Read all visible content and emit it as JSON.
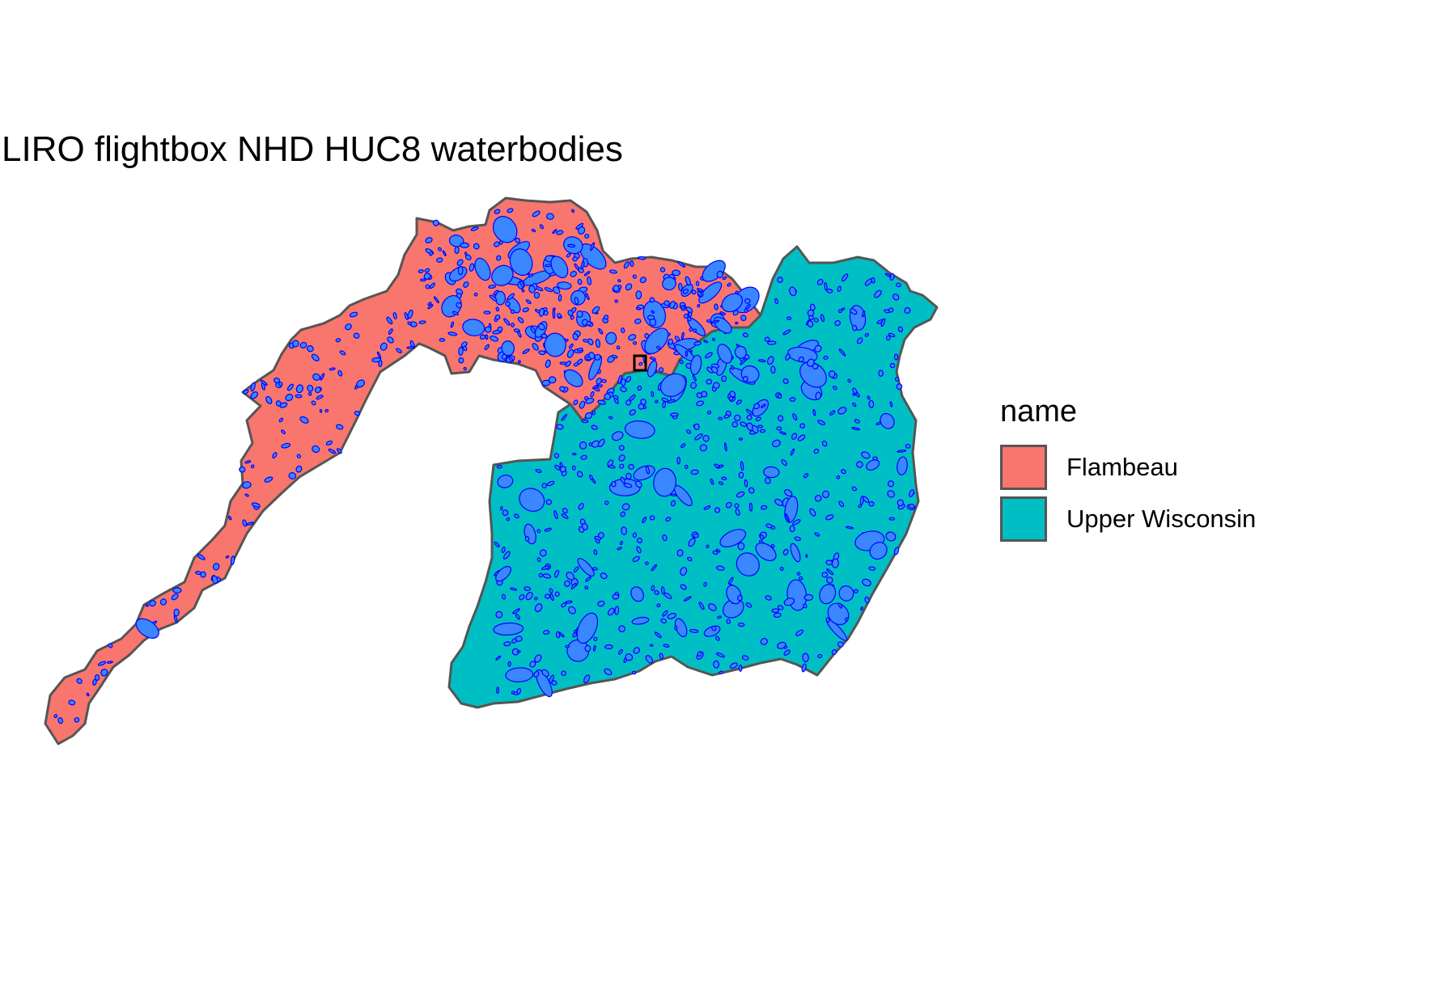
{
  "title": "LIRO flightbox NHD HUC8 waterbodies",
  "legend": {
    "title": "name",
    "items": [
      {
        "label": "Flambeau",
        "color": "#F8766D"
      },
      {
        "label": "Upper Wisconsin",
        "color": "#00BFC4"
      }
    ]
  },
  "colors": {
    "outline": "#555555",
    "water_fill": "#3A87FF",
    "water_outline": "#0000FF",
    "flightbox_outline": "#000000"
  }
}
